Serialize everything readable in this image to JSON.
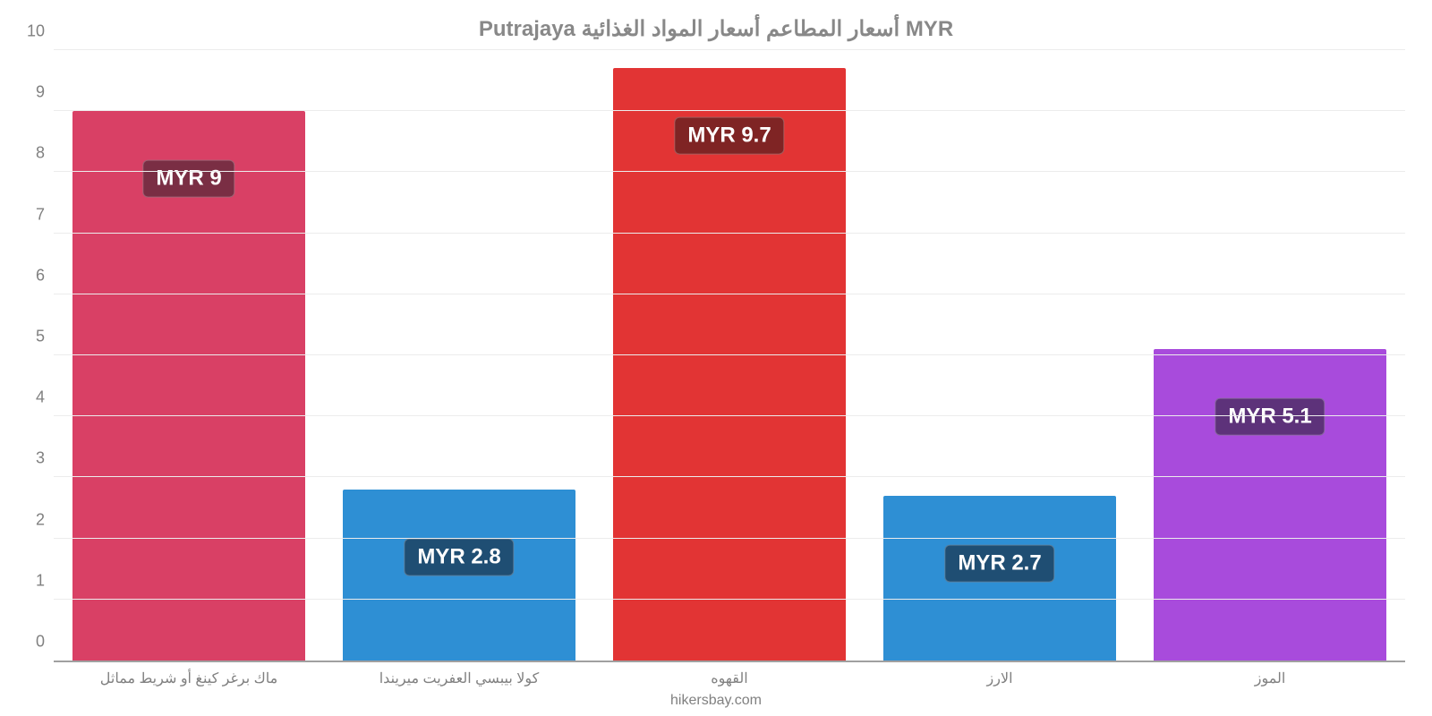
{
  "chart": {
    "type": "bar",
    "title": "MYR أسعار المطاعم أسعار المواد الغذائية Putrajaya",
    "title_fontsize": 24,
    "title_color": "#888888",
    "background_color": "#ffffff",
    "grid_color": "#ececec",
    "axis_color": "#a0a0a0",
    "label_color": "#808080",
    "xlabel_fontsize": 16,
    "ytick_fontsize": 18,
    "value_badge_fontsize": 24,
    "ylim": [
      0,
      10
    ],
    "yticks": [
      0,
      1,
      2,
      3,
      4,
      5,
      6,
      7,
      8,
      9,
      10
    ],
    "bar_width_ratio": 0.86,
    "categories": [
      "ماك برغر كينغ أو شريط مماثل",
      "كولا بيبسي العفريت ميريندا",
      "القهوه",
      "الارز",
      "الموز"
    ],
    "values": [
      9,
      2.8,
      9.7,
      2.7,
      5.1
    ],
    "value_labels": [
      "MYR 9",
      "MYR 2.8",
      "MYR 9.7",
      "MYR 2.7",
      "MYR 5.1"
    ],
    "bar_colors": [
      "#d94065",
      "#2e8fd4",
      "#e23434",
      "#2e8fd4",
      "#a84bdc"
    ],
    "badge_bg_colors": [
      "#7a2e44",
      "#1f4e73",
      "#7f2424",
      "#1f4e73",
      "#5d327a"
    ],
    "credit": "hikersbay.com"
  }
}
